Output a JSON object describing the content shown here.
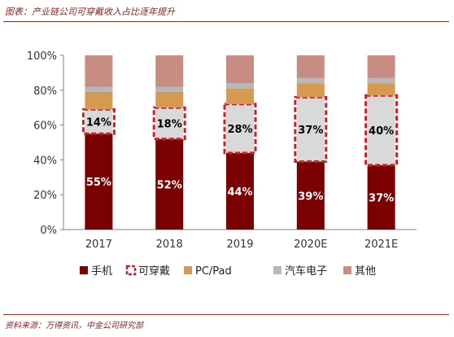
{
  "header": {
    "title": "图表：产业链公司可穿戴收入占比逐年提升"
  },
  "footer": {
    "source": "资料来源：万得资讯，中金公司研究部"
  },
  "chart_data": {
    "type": "bar",
    "stacked": true,
    "title": "图表：产业链公司可穿戴收入占比逐年提升",
    "xlabel": "",
    "ylabel": "",
    "ylim": [
      0,
      100
    ],
    "yticks": [
      "0%",
      "20%",
      "40%",
      "60%",
      "80%",
      "100%"
    ],
    "categories": [
      "2017",
      "2018",
      "2019",
      "2020E",
      "2021E"
    ],
    "series": [
      {
        "name": "手机",
        "color": "#7b0000",
        "values": [
          55,
          52,
          44,
          39,
          37
        ],
        "labels": [
          "55%",
          "52%",
          "44%",
          "39%",
          "37%"
        ]
      },
      {
        "name": "可穿戴",
        "color": "#d9d9d9",
        "border": "#cc1f2a",
        "values": [
          14,
          18,
          28,
          37,
          40
        ],
        "labels": [
          "14%",
          "18%",
          "28%",
          "37%",
          "40%"
        ]
      },
      {
        "name": "PC/Pad",
        "color": "#d59a4f",
        "values": [
          10,
          9,
          9,
          8,
          7
        ]
      },
      {
        "name": "汽车电子",
        "color": "#b8b8b8",
        "values": [
          3,
          3,
          3,
          3,
          3
        ]
      },
      {
        "name": "其他",
        "color": "#c88c82",
        "values": [
          18,
          18,
          16,
          13,
          13
        ]
      }
    ],
    "legend_position": "bottom",
    "grid": false
  }
}
